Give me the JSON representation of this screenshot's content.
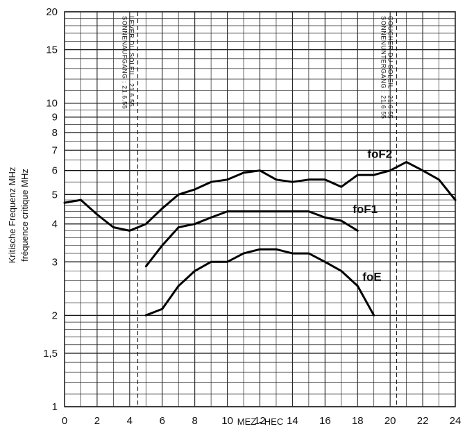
{
  "chart_data": {
    "type": "line",
    "xlabel": "MEZ - HEC",
    "ylabel": [
      "Kritische Frequenz MHz",
      "fréquence critique MHz"
    ],
    "xlim": [
      0,
      24
    ],
    "ylim": [
      1,
      20
    ],
    "y_scale": "log",
    "grid": true,
    "x_ticks": [
      0,
      2,
      4,
      6,
      8,
      10,
      12,
      14,
      16,
      18,
      20,
      22,
      24
    ],
    "y_ticks": [
      {
        "value": 1,
        "label": "1"
      },
      {
        "value": 1.5,
        "label": "1,5"
      },
      {
        "value": 2,
        "label": "2"
      },
      {
        "value": 3,
        "label": "3"
      },
      {
        "value": 4,
        "label": "4"
      },
      {
        "value": 5,
        "label": "5"
      },
      {
        "value": 6,
        "label": "6"
      },
      {
        "value": 7,
        "label": "7"
      },
      {
        "value": 8,
        "label": "8"
      },
      {
        "value": 9,
        "label": "9"
      },
      {
        "value": 10,
        "label": "10"
      },
      {
        "value": 15,
        "label": "15"
      },
      {
        "value": 20,
        "label": "20"
      }
    ],
    "annotations": [
      {
        "x": 4.5,
        "lines": [
          "SONNENAUFGANG : 21.6.55",
          "LEVER DU SOLEIL : 21.6.55"
        ]
      },
      {
        "x": 20.4,
        "lines": [
          "SONNENUNTERGANG : 21.6.55",
          "COUCHER DU SOLEIL : 21.6.55"
        ]
      }
    ],
    "series": [
      {
        "name": "foF2",
        "x": [
          0,
          1,
          2,
          3,
          4,
          5,
          6,
          7,
          8,
          9,
          10,
          11,
          12,
          13,
          14,
          15,
          16,
          17,
          18,
          19,
          20,
          21,
          22,
          23,
          24
        ],
        "values": [
          4.7,
          4.8,
          4.3,
          3.9,
          3.8,
          4.0,
          4.5,
          5.0,
          5.2,
          5.5,
          5.6,
          5.9,
          6.0,
          5.6,
          5.5,
          5.6,
          5.6,
          5.3,
          5.8,
          5.8,
          6.0,
          6.4,
          6.0,
          5.6,
          4.8
        ]
      },
      {
        "name": "foF1",
        "x": [
          5,
          6,
          7,
          8,
          9,
          10,
          11,
          12,
          13,
          14,
          15,
          16,
          17,
          18
        ],
        "values": [
          2.9,
          3.4,
          3.9,
          4.0,
          4.2,
          4.4,
          4.4,
          4.4,
          4.4,
          4.4,
          4.4,
          4.2,
          4.1,
          3.8
        ]
      },
      {
        "name": "foE",
        "x": [
          5,
          6,
          7,
          8,
          9,
          10,
          11,
          12,
          13,
          14,
          15,
          16,
          17,
          18,
          19
        ],
        "values": [
          2.0,
          2.1,
          2.5,
          2.8,
          3.0,
          3.0,
          3.2,
          3.3,
          3.3,
          3.2,
          3.2,
          3.0,
          2.8,
          2.5,
          2.0
        ]
      }
    ]
  }
}
